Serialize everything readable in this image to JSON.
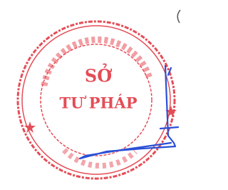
{
  "stamp": {
    "line1": "SỞ",
    "line2": "TƯ PHÁP"
  }
}
